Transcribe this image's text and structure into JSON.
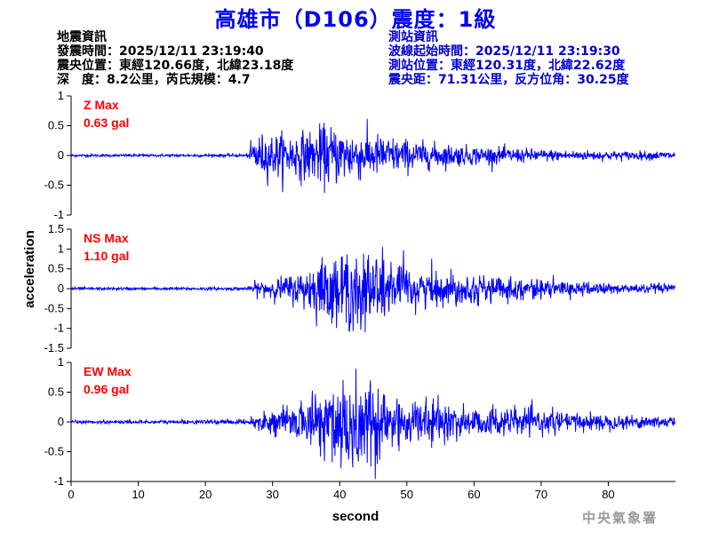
{
  "title": "高雄市（D106）震度：1級",
  "earthquake_info": {
    "heading": "地震資訊",
    "time": "發震時間：2025/12/11 23:19:40",
    "epicenter": "震央位置：東經120.66度，北緯23.18度",
    "depth_magnitude": "深　度：8.2公里，芮氏規模：4.7"
  },
  "station_info": {
    "heading": "測站資訊",
    "wave_start": "波線起始時間：2025/12/11 23:19:30",
    "location": "測站位置：東經120.31度，北緯22.62度",
    "distance_azimuth": "震央距：71.31公里，反方位角：30.25度"
  },
  "credit": "中央氣象署",
  "colors": {
    "title": "#0000ee",
    "station_info": "#0000cc",
    "trace": "#0000ff",
    "max_label": "#ff0000",
    "credit": "#9a9a9a"
  },
  "chart_data": {
    "type": "line",
    "xlabel": "second",
    "ylabel": "acceleration",
    "xlim": [
      0,
      90
    ],
    "x_ticks": [
      0,
      10,
      20,
      30,
      40,
      50,
      60,
      70,
      80
    ],
    "noise_onset_s": 26.5,
    "grid": false,
    "panels": [
      {
        "name": "Z Max",
        "max_text": "0.63 gal",
        "peak": 0.63,
        "ylim": [
          -1,
          1
        ],
        "y_ticks": [
          1,
          0.5,
          0,
          -0.5,
          -1
        ],
        "envelope": [
          [
            0,
            0.025
          ],
          [
            26.5,
            0.03
          ],
          [
            27,
            0.4
          ],
          [
            30,
            0.43
          ],
          [
            33,
            0.44
          ],
          [
            36,
            0.5
          ],
          [
            38,
            0.6
          ],
          [
            40,
            0.55
          ],
          [
            44,
            0.45
          ],
          [
            48,
            0.36
          ],
          [
            52,
            0.27
          ],
          [
            58,
            0.2
          ],
          [
            65,
            0.15
          ],
          [
            72,
            0.11
          ],
          [
            80,
            0.09
          ],
          [
            90,
            0.08
          ]
        ]
      },
      {
        "name": "NS Max",
        "max_text": "1.10 gal",
        "peak": 1.1,
        "ylim": [
          -1.5,
          1.5
        ],
        "y_ticks": [
          1.5,
          1,
          0.5,
          0,
          -0.5,
          -1,
          -1.5
        ],
        "envelope": [
          [
            0,
            0.025
          ],
          [
            26.5,
            0.03
          ],
          [
            27,
            0.12
          ],
          [
            30,
            0.18
          ],
          [
            34,
            0.3
          ],
          [
            38,
            0.62
          ],
          [
            40,
            0.7
          ],
          [
            43,
            0.78
          ],
          [
            46,
            0.72
          ],
          [
            48,
            0.5
          ],
          [
            52,
            0.36
          ],
          [
            58,
            0.28
          ],
          [
            65,
            0.22
          ],
          [
            72,
            0.15
          ],
          [
            80,
            0.11
          ],
          [
            90,
            0.08
          ]
        ]
      },
      {
        "name": "EW Max",
        "max_text": "0.96 gal",
        "peak": 0.96,
        "ylim": [
          -1,
          1
        ],
        "y_ticks": [
          1,
          0.5,
          0,
          -0.5,
          -1
        ],
        "envelope": [
          [
            0,
            0.02
          ],
          [
            26.5,
            0.03
          ],
          [
            27,
            0.08
          ],
          [
            30,
            0.15
          ],
          [
            34,
            0.22
          ],
          [
            37,
            0.5
          ],
          [
            40,
            0.78
          ],
          [
            43,
            0.8
          ],
          [
            46,
            0.62
          ],
          [
            50,
            0.32
          ],
          [
            55,
            0.24
          ],
          [
            62,
            0.2
          ],
          [
            70,
            0.15
          ],
          [
            80,
            0.1
          ],
          [
            90,
            0.08
          ]
        ]
      }
    ]
  }
}
